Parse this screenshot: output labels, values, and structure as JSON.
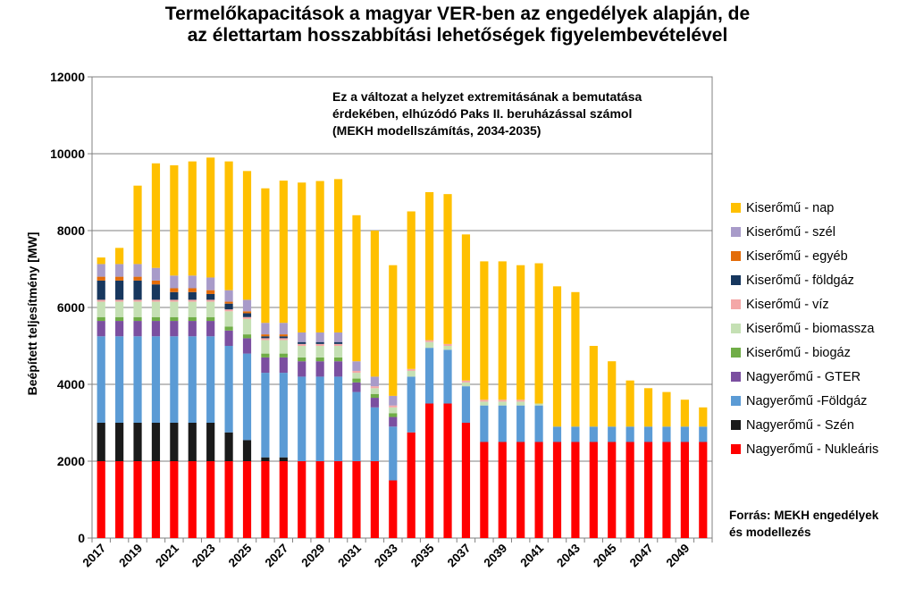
{
  "chart_data": {
    "type": "bar",
    "stacked": true,
    "title_line1": "Termelőkapacitások a magyar VER-ben az engedélyek alapján, de",
    "title_line2": "az élettartam hosszabbítási lehetőségek figyelembevételével",
    "annotation_line1": "Ez a változat a helyzet extremitásának a bemutatása",
    "annotation_line2": "érdekében, elhúzódó Paks II. beruházással számol",
    "annotation_line3": "(MEKH modellszámítás, 2034-2035)",
    "source_line1": "Forrás: MEKH engedélyek",
    "source_line2": "és modellezés",
    "ylabel": "Beépített teljesítmény [MW]",
    "xlabel": "",
    "ylim": [
      0,
      12000
    ],
    "yticks": [
      0,
      2000,
      4000,
      6000,
      8000,
      10000,
      12000
    ],
    "grid": true,
    "legend_position": "right",
    "categories": [
      "2017",
      "2018",
      "2019",
      "2020",
      "2021",
      "2022",
      "2023",
      "2024",
      "2025",
      "2026",
      "2027",
      "2028",
      "2029",
      "2030",
      "2031",
      "2032",
      "2033",
      "2034",
      "2035",
      "2036",
      "2037",
      "2038",
      "2039",
      "2040",
      "2041",
      "2042",
      "2043",
      "2044",
      "2045",
      "2046",
      "2047",
      "2048",
      "2049",
      "2050"
    ],
    "xtick_labels": [
      "2017",
      "2019",
      "2021",
      "2023",
      "2025",
      "2027",
      "2029",
      "2031",
      "2033",
      "2035",
      "2037",
      "2039",
      "2041",
      "2043",
      "2045",
      "2047",
      "2049"
    ],
    "series": [
      {
        "name": "Nagyerőmű - Nukleáris",
        "color": "#ff0000",
        "values": [
          2000,
          2000,
          2000,
          2000,
          2000,
          2000,
          2000,
          2000,
          2000,
          2000,
          2000,
          2000,
          2000,
          2000,
          2000,
          2000,
          1500,
          2750,
          3500,
          3500,
          3000,
          2500,
          2500,
          2500,
          2500,
          2500,
          2500,
          2500,
          2500,
          2500,
          2500,
          2500,
          2500,
          2500
        ]
      },
      {
        "name": "Nagyerőmű - Szén",
        "color": "#1a1a1a",
        "values": [
          1000,
          1000,
          1000,
          1000,
          1000,
          1000,
          1000,
          750,
          550,
          100,
          100,
          0,
          0,
          0,
          0,
          0,
          0,
          0,
          0,
          0,
          0,
          0,
          0,
          0,
          0,
          0,
          0,
          0,
          0,
          0,
          0,
          0,
          0,
          0
        ]
      },
      {
        "name": "Nagyerőmű -Földgáz",
        "color": "#5b9bd5",
        "values": [
          2250,
          2250,
          2250,
          2250,
          2250,
          2250,
          2250,
          2250,
          2250,
          2200,
          2200,
          2200,
          2200,
          2200,
          1800,
          1400,
          1400,
          1450,
          1450,
          1400,
          950,
          950,
          950,
          950,
          950,
          400,
          400,
          400,
          400,
          400,
          400,
          400,
          400,
          400
        ]
      },
      {
        "name": "Nagyerőmű - GTER",
        "color": "#7b4fa0",
        "values": [
          400,
          400,
          400,
          400,
          400,
          400,
          400,
          400,
          400,
          400,
          400,
          400,
          400,
          400,
          250,
          250,
          250,
          0,
          0,
          0,
          0,
          0,
          0,
          0,
          0,
          0,
          0,
          0,
          0,
          0,
          0,
          0,
          0,
          0
        ]
      },
      {
        "name": "Kiserőmű - biogáz",
        "color": "#70ad47",
        "values": [
          100,
          100,
          100,
          100,
          100,
          100,
          100,
          100,
          100,
          100,
          100,
          100,
          100,
          100,
          100,
          100,
          100,
          0,
          0,
          0,
          0,
          0,
          0,
          0,
          0,
          0,
          0,
          0,
          0,
          0,
          0,
          0,
          0,
          0
        ]
      },
      {
        "name": "Kiserőmű - biomassza",
        "color": "#c5e0b4",
        "values": [
          400,
          400,
          400,
          400,
          400,
          400,
          400,
          400,
          400,
          350,
          350,
          300,
          300,
          300,
          150,
          150,
          150,
          150,
          150,
          100,
          100,
          100,
          100,
          100,
          50,
          0,
          0,
          0,
          0,
          0,
          0,
          0,
          0,
          0
        ]
      },
      {
        "name": "Kiserőmű - víz",
        "color": "#f4a7a7",
        "values": [
          50,
          50,
          50,
          50,
          50,
          50,
          50,
          50,
          50,
          50,
          50,
          50,
          50,
          50,
          50,
          50,
          50,
          50,
          50,
          50,
          50,
          50,
          50,
          50,
          0,
          0,
          0,
          0,
          0,
          0,
          0,
          0,
          0,
          0
        ]
      },
      {
        "name": "Kiserőmű - földgáz",
        "color": "#17375e",
        "values": [
          500,
          500,
          500,
          400,
          200,
          200,
          150,
          150,
          100,
          50,
          50,
          50,
          50,
          50,
          0,
          0,
          0,
          0,
          0,
          0,
          0,
          0,
          0,
          0,
          0,
          0,
          0,
          0,
          0,
          0,
          0,
          0,
          0,
          0
        ]
      },
      {
        "name": "Kiserőmű - egyéb",
        "color": "#e36c09",
        "values": [
          100,
          100,
          100,
          100,
          100,
          100,
          100,
          50,
          50,
          50,
          50,
          0,
          0,
          0,
          0,
          0,
          0,
          0,
          0,
          0,
          0,
          0,
          0,
          0,
          0,
          0,
          0,
          0,
          0,
          0,
          0,
          0,
          0,
          0
        ]
      },
      {
        "name": "Kiserőmű - szél",
        "color": "#a89bc9",
        "values": [
          330,
          330,
          330,
          330,
          330,
          330,
          330,
          300,
          300,
          300,
          300,
          250,
          250,
          250,
          250,
          250,
          250,
          0,
          0,
          0,
          0,
          0,
          0,
          0,
          0,
          0,
          0,
          0,
          0,
          0,
          0,
          0,
          0,
          0
        ]
      },
      {
        "name": "Kiserőmű - nap",
        "color": "#ffc000",
        "values": [
          170,
          420,
          2040,
          2720,
          2870,
          2970,
          3120,
          3350,
          3350,
          3500,
          3700,
          3900,
          3940,
          3990,
          3800,
          3800,
          3400,
          4100,
          3850,
          3900,
          3800,
          3600,
          3600,
          3500,
          3650,
          3650,
          3500,
          2100,
          1700,
          1200,
          1000,
          900,
          700,
          500
        ]
      }
    ]
  }
}
